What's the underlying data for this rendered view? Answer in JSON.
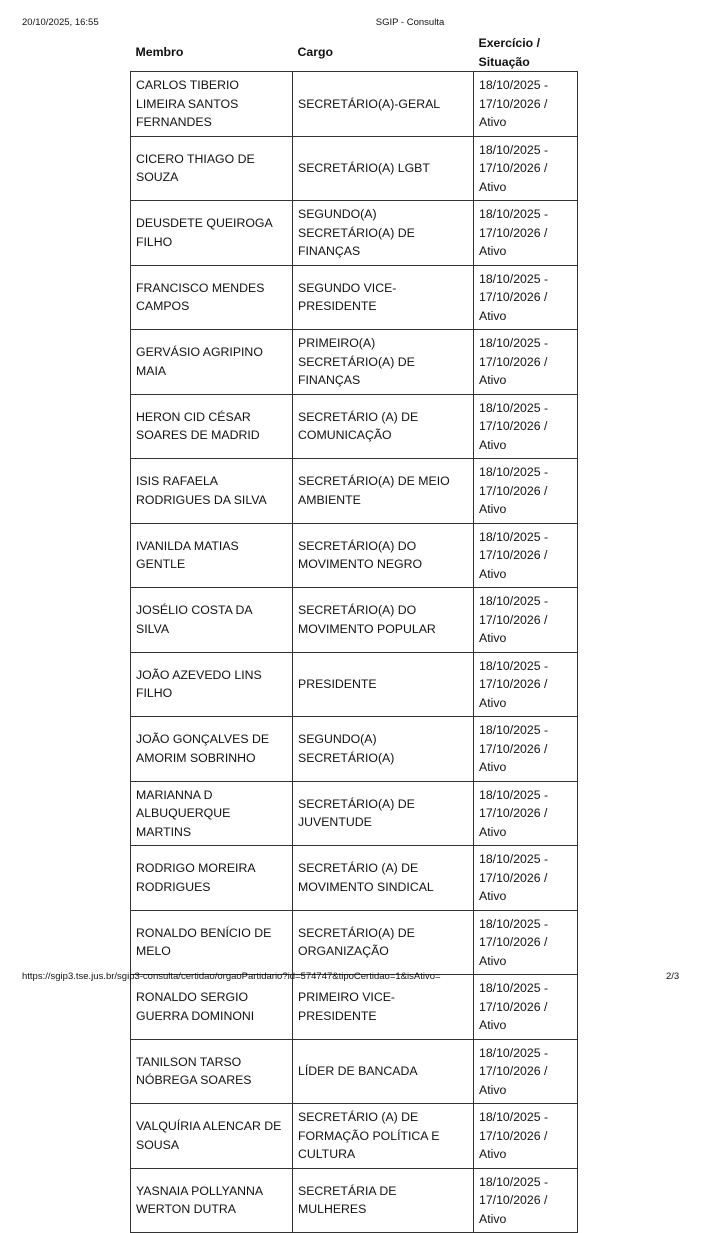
{
  "print_header": {
    "datetime": "20/10/2025, 16:55",
    "title": "SGIP - Consulta"
  },
  "print_footer": {
    "url": "https://sgip3.tse.jus.br/sgip3-consulta/certidao/orgaoPartidario?id=574747&tipoCertidao=1&isAtivo=",
    "page": "2/3"
  },
  "table": {
    "headers": {
      "membro": "Membro",
      "cargo": "Cargo",
      "exercicio_1": "Exercício /",
      "exercicio_2": "Situação"
    },
    "rows": [
      {
        "membro": "CARLOS TIBERIO LIMEIRA SANTOS FERNANDES",
        "cargo": "SECRETÁRIO(A)-GERAL",
        "periodo_inicio": "18/10/2025 -",
        "periodo_fim": "17/10/2026 / Ativo"
      },
      {
        "membro": "CICERO THIAGO DE SOUZA",
        "cargo": "SECRETÁRIO(A) LGBT",
        "periodo_inicio": "18/10/2025 -",
        "periodo_fim": "17/10/2026 / Ativo"
      },
      {
        "membro": "DEUSDETE QUEIROGA FILHO",
        "cargo": "SEGUNDO(A) SECRETÁRIO(A) DE FINANÇAS",
        "periodo_inicio": "18/10/2025 -",
        "periodo_fim": "17/10/2026 / Ativo"
      },
      {
        "membro": "FRANCISCO MENDES CAMPOS",
        "cargo": "SEGUNDO VICE-PRESIDENTE",
        "periodo_inicio": "18/10/2025 -",
        "periodo_fim": "17/10/2026 / Ativo"
      },
      {
        "membro": "GERVÁSIO AGRIPINO MAIA",
        "cargo": "PRIMEIRO(A) SECRETÁRIO(A) DE FINANÇAS",
        "periodo_inicio": "18/10/2025 -",
        "periodo_fim": "17/10/2026 / Ativo"
      },
      {
        "membro": "HERON CID CÉSAR SOARES DE MADRID",
        "cargo": "SECRETÁRIO (A) DE COMUNICAÇÃO",
        "periodo_inicio": "18/10/2025 -",
        "periodo_fim": "17/10/2026 / Ativo"
      },
      {
        "membro": "ISIS RAFAELA RODRIGUES DA SILVA",
        "cargo": "SECRETÁRIO(A) DE MEIO AMBIENTE",
        "periodo_inicio": "18/10/2025 -",
        "periodo_fim": "17/10/2026 / Ativo"
      },
      {
        "membro": "IVANILDA MATIAS GENTLE",
        "cargo": "SECRETÁRIO(A) DO MOVIMENTO NEGRO",
        "periodo_inicio": "18/10/2025 -",
        "periodo_fim": "17/10/2026 / Ativo"
      },
      {
        "membro": "JOSÉLIO COSTA DA SILVA",
        "cargo": "SECRETÁRIO(A) DO MOVIMENTO POPULAR",
        "periodo_inicio": "18/10/2025 -",
        "periodo_fim": "17/10/2026 / Ativo"
      },
      {
        "membro": "JOÃO AZEVEDO LINS FILHO",
        "cargo": "PRESIDENTE",
        "periodo_inicio": "18/10/2025 -",
        "periodo_fim": "17/10/2026 / Ativo"
      },
      {
        "membro": "JOÃO GONÇALVES DE AMORIM SOBRINHO",
        "cargo": "SEGUNDO(A) SECRETÁRIO(A)",
        "periodo_inicio": "18/10/2025 -",
        "periodo_fim": "17/10/2026 / Ativo"
      },
      {
        "membro": "MARIANNA D ALBUQUERQUE MARTINS",
        "cargo": "SECRETÁRIO(A) DE JUVENTUDE",
        "periodo_inicio": "18/10/2025 -",
        "periodo_fim": "17/10/2026 / Ativo"
      },
      {
        "membro": "RODRIGO MOREIRA RODRIGUES",
        "cargo": "SECRETÁRIO (A) DE MOVIMENTO SINDICAL",
        "periodo_inicio": "18/10/2025 -",
        "periodo_fim": "17/10/2026 / Ativo"
      },
      {
        "membro": "RONALDO BENÍCIO DE MELO",
        "cargo": "SECRETÁRIO(A) DE ORGANIZAÇÃO",
        "periodo_inicio": "18/10/2025 -",
        "periodo_fim": "17/10/2026 / Ativo"
      },
      {
        "membro": "RONALDO SERGIO GUERRA DOMINONI",
        "cargo": "PRIMEIRO VICE-PRESIDENTE",
        "periodo_inicio": "18/10/2025 -",
        "periodo_fim": "17/10/2026 / Ativo"
      },
      {
        "membro": "TANILSON TARSO NÓBREGA SOARES",
        "cargo": "LÍDER DE BANCADA",
        "periodo_inicio": "18/10/2025 -",
        "periodo_fim": "17/10/2026 / Ativo"
      },
      {
        "membro": "VALQUÍRIA ALENCAR DE SOUSA",
        "cargo": "SECRETÁRIO (A) DE FORMAÇÃO POLÍTICA E CULTURA",
        "periodo_inicio": "18/10/2025 -",
        "periodo_fim": "17/10/2026 / Ativo"
      },
      {
        "membro": "YASNAIA POLLYANNA WERTON DUTRA",
        "cargo": "SECRETÁRIA DE MULHERES",
        "periodo_inicio": "18/10/2025 -",
        "periodo_fim": "17/10/2026 / Ativo"
      }
    ]
  }
}
